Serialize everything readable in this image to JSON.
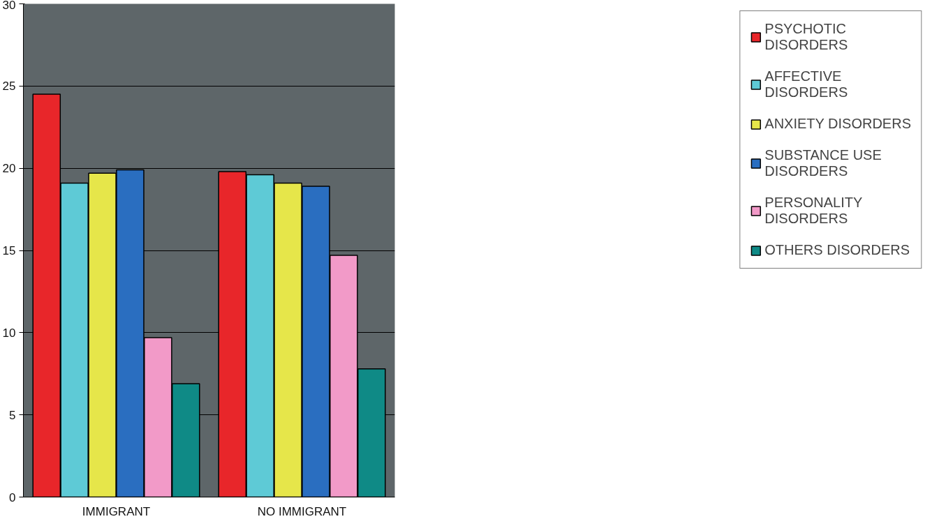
{
  "chart_data": {
    "type": "bar",
    "categories": [
      "IMMIGRANT",
      "NO IMMIGRANT"
    ],
    "series": [
      {
        "name": "PSYCHOTIC DISORDERS",
        "color": "#e8262a",
        "values": [
          24.5,
          19.8
        ]
      },
      {
        "name": "AFFECTIVE DISORDERS",
        "color": "#5ecad6",
        "values": [
          19.1,
          19.6
        ]
      },
      {
        "name": "ANXIETY DISORDERS",
        "color": "#e6e64a",
        "values": [
          19.7,
          19.1
        ]
      },
      {
        "name": "SUBSTANCE USE DISORDERS",
        "color": "#2a6ec0",
        "values": [
          19.9,
          18.9
        ]
      },
      {
        "name": "PERSONALITY DISORDERS",
        "color": "#f29ac8",
        "values": [
          9.7,
          14.7
        ]
      },
      {
        "name": "OTHERS DISORDERS",
        "color": "#0f8a86",
        "values": [
          6.9,
          7.8
        ]
      }
    ],
    "ylim": [
      0,
      30
    ],
    "yticks": [
      0,
      5,
      10,
      15,
      20,
      25,
      30
    ],
    "grid": "y",
    "legend": "right"
  }
}
